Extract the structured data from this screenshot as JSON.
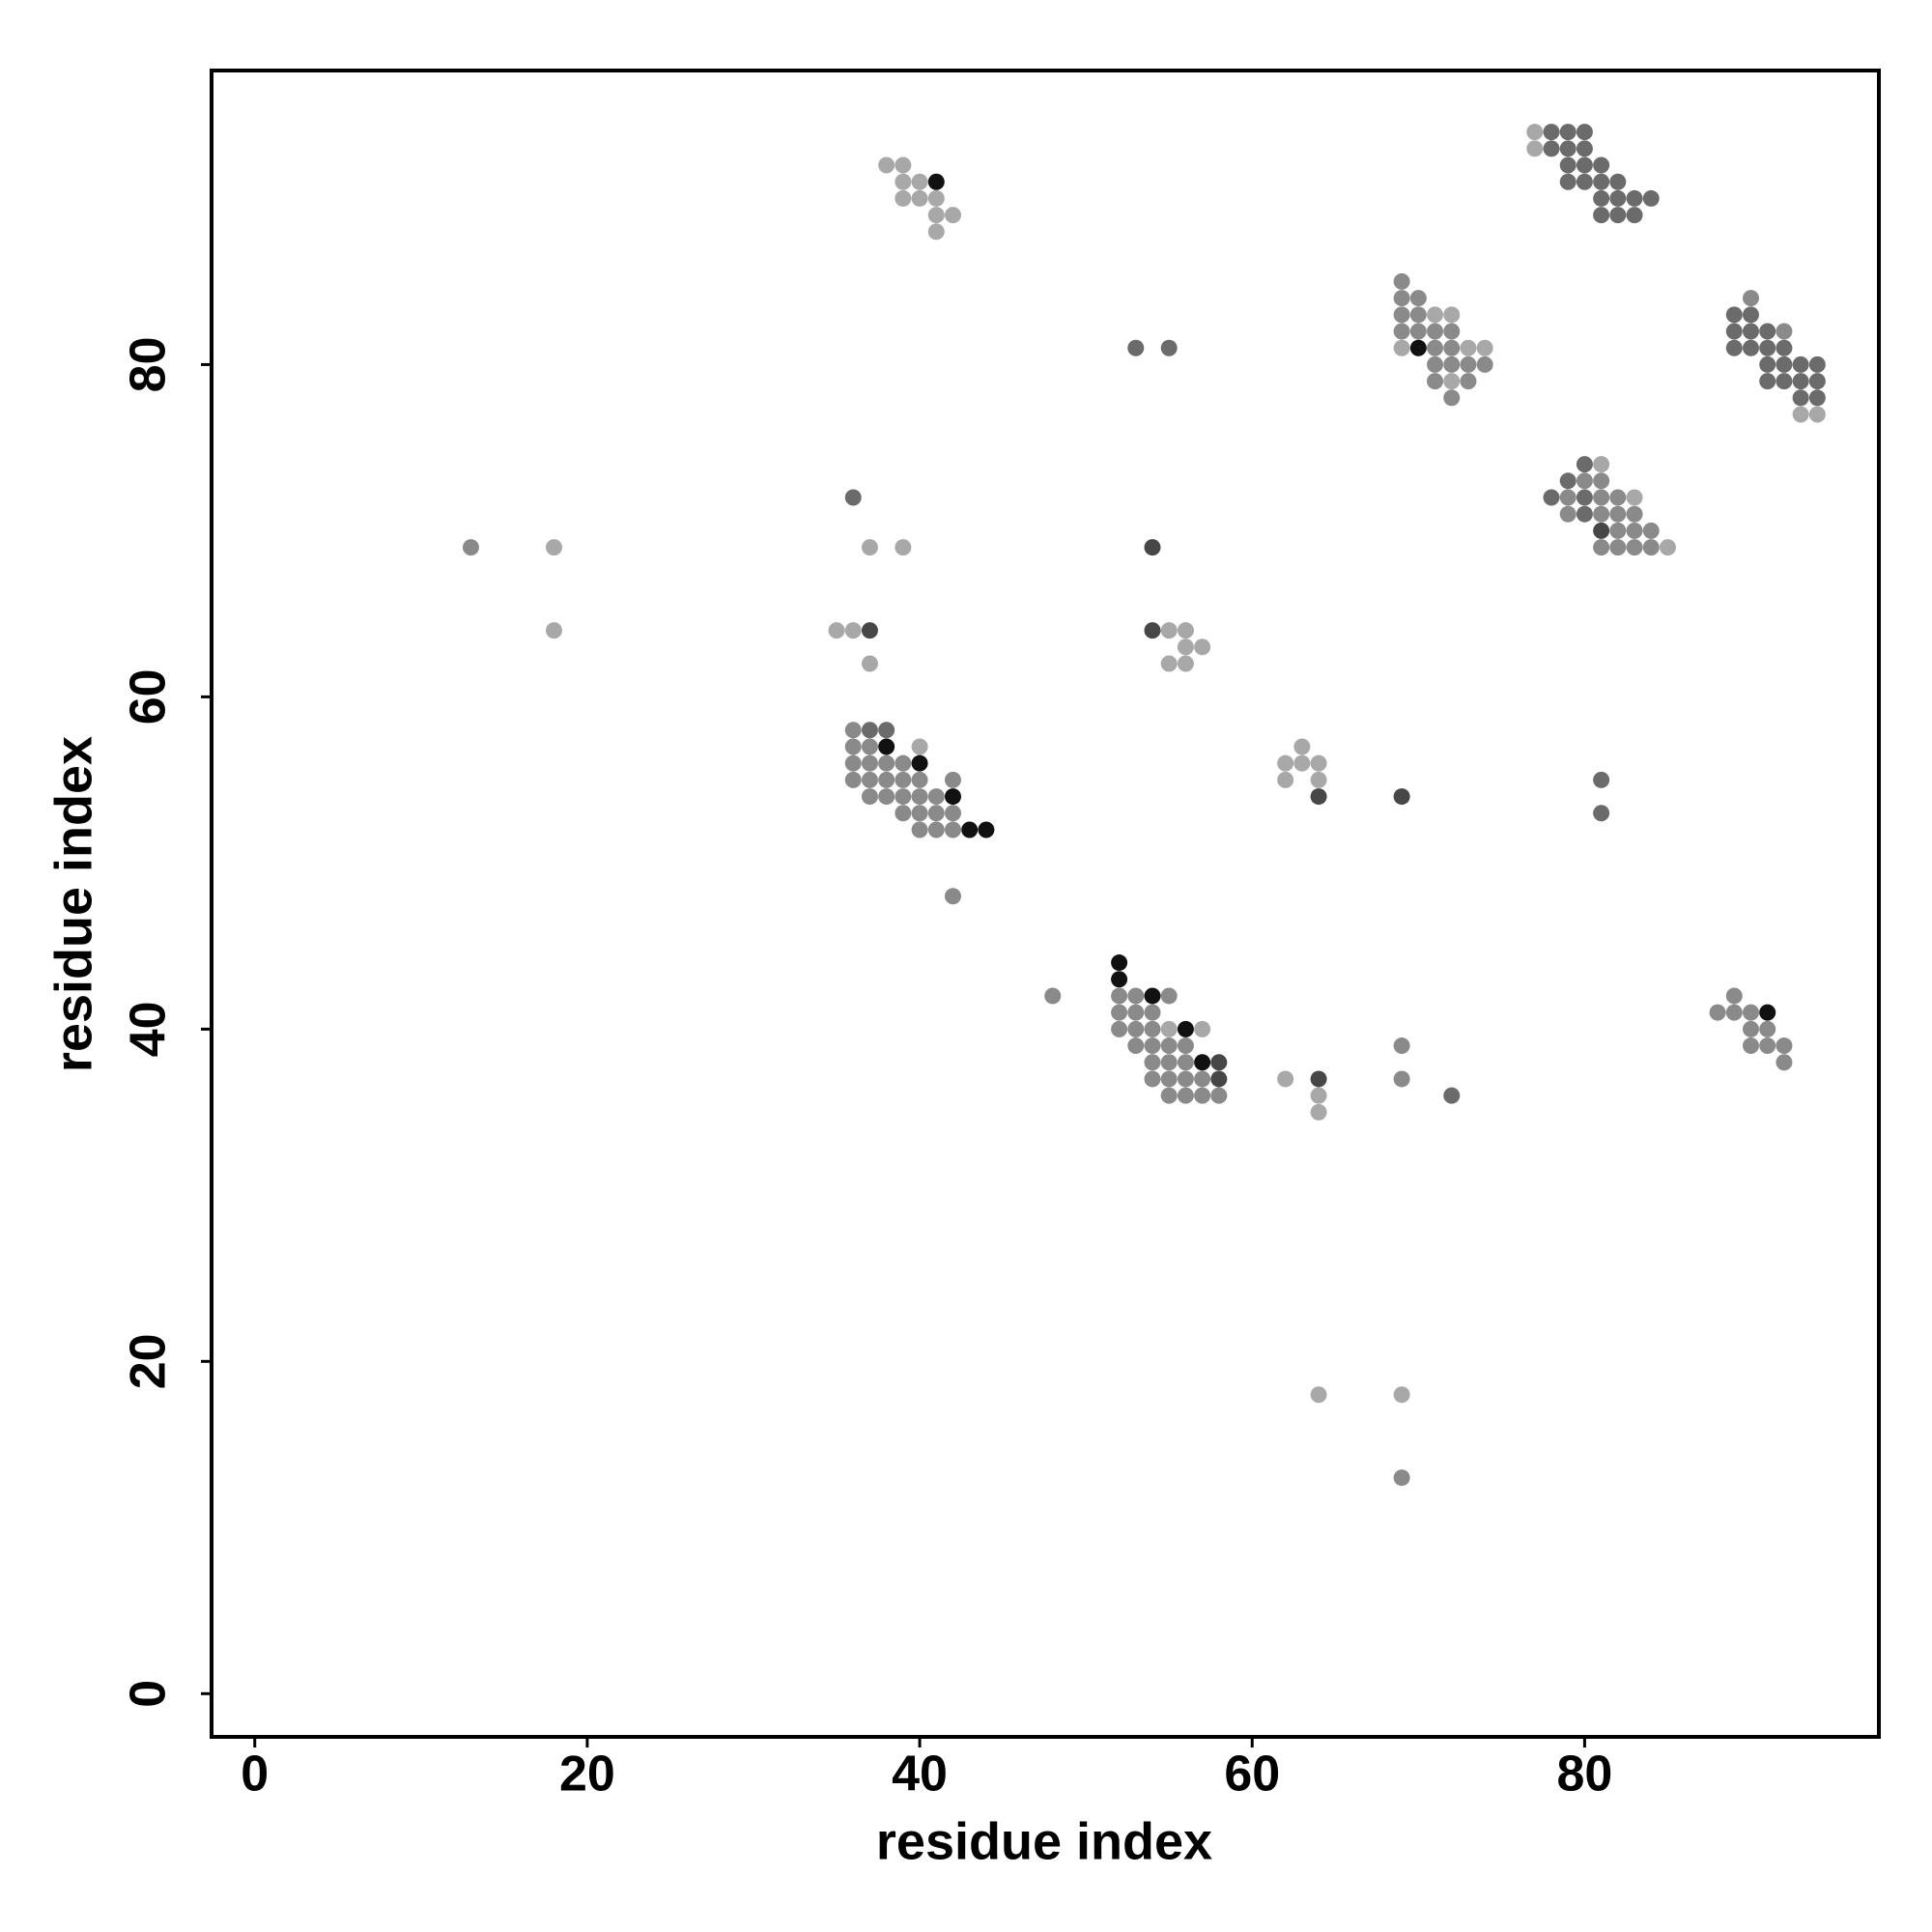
{
  "chart_data": {
    "type": "scatter",
    "xlabel": "residue index",
    "ylabel": "residue index",
    "xlim": [
      -2.6,
      97.7
    ],
    "ylim": [
      -2.6,
      97.7
    ],
    "xticks": [
      0,
      20,
      40,
      60,
      80
    ],
    "yticks": [
      0,
      20,
      40,
      60,
      80
    ],
    "series": [
      {
        "color": "#a8a8a8",
        "x": [
          38,
          39,
          39,
          40,
          39,
          40,
          41,
          41,
          42,
          41,
          77,
          77,
          71,
          72,
          69,
          73,
          74,
          72,
          81,
          83,
          85,
          93,
          94,
          18,
          37,
          39,
          18,
          35,
          36,
          55,
          56,
          56,
          57,
          37,
          55,
          56,
          40,
          63,
          62,
          63,
          64,
          62,
          64,
          55,
          57,
          62,
          64,
          64,
          64,
          69
        ],
        "values": [
          92,
          92,
          91,
          91,
          90,
          90,
          90,
          89,
          89,
          88,
          94,
          93,
          83,
          83,
          81,
          81,
          81,
          79,
          74,
          72,
          69,
          77,
          77,
          69,
          69,
          69,
          64,
          64,
          64,
          64,
          64,
          63,
          63,
          62,
          62,
          62,
          57,
          57,
          56,
          56,
          56,
          55,
          55,
          40,
          40,
          37,
          36,
          35,
          18,
          18
        ]
      },
      {
        "color": "#8a8a8a",
        "x": [
          69,
          69,
          70,
          69,
          70,
          69,
          70,
          71,
          72,
          71,
          72,
          71,
          72,
          73,
          74,
          71,
          73,
          72,
          80,
          81,
          79,
          81,
          82,
          79,
          81,
          82,
          83,
          82,
          83,
          84,
          81,
          82,
          83,
          84,
          90,
          92,
          36,
          36,
          37,
          36,
          37,
          38,
          39,
          36,
          37,
          38,
          39,
          40,
          37,
          38,
          39,
          40,
          41,
          39,
          40,
          41,
          42,
          40,
          41,
          42,
          42,
          52,
          53,
          55,
          52,
          53,
          54,
          52,
          53,
          54,
          53,
          54,
          55,
          56,
          54,
          55,
          56,
          54,
          55,
          56,
          57,
          55,
          56,
          57,
          58,
          69,
          69,
          69,
          13,
          89,
          88,
          89,
          90,
          90,
          91,
          90,
          91,
          92,
          92,
          42,
          48
        ],
        "values": [
          85,
          84,
          84,
          83,
          83,
          82,
          82,
          82,
          82,
          81,
          81,
          80,
          80,
          80,
          80,
          79,
          79,
          78,
          73,
          73,
          72,
          72,
          72,
          71,
          71,
          71,
          71,
          70,
          70,
          70,
          69,
          69,
          69,
          69,
          84,
          82,
          58,
          57,
          57,
          56,
          56,
          56,
          56,
          55,
          55,
          55,
          55,
          55,
          54,
          54,
          54,
          54,
          54,
          53,
          53,
          53,
          53,
          52,
          52,
          52,
          55,
          42,
          42,
          42,
          41,
          41,
          41,
          40,
          40,
          40,
          39,
          39,
          39,
          39,
          38,
          38,
          38,
          37,
          37,
          37,
          37,
          36,
          36,
          36,
          36,
          37,
          39,
          13,
          69,
          42,
          41,
          41,
          41,
          40,
          40,
          39,
          39,
          39,
          38,
          48,
          42
        ]
      },
      {
        "color": "#6b6b6b",
        "x": [
          78,
          79,
          80,
          78,
          79,
          80,
          79,
          80,
          81,
          79,
          80,
          81,
          82,
          81,
          82,
          83,
          84,
          81,
          82,
          83,
          53,
          55,
          36,
          78,
          81,
          81,
          72,
          37,
          38,
          89,
          90,
          89,
          90,
          91,
          89,
          90,
          91,
          92,
          91,
          92,
          93,
          94,
          91,
          92,
          93,
          94,
          93,
          94,
          80,
          79,
          80,
          80
        ],
        "values": [
          94,
          94,
          94,
          93,
          93,
          93,
          92,
          92,
          92,
          91,
          91,
          91,
          91,
          90,
          90,
          90,
          90,
          89,
          89,
          89,
          81,
          81,
          72,
          72,
          55,
          53,
          36,
          58,
          58,
          83,
          83,
          82,
          82,
          82,
          81,
          81,
          81,
          81,
          80,
          80,
          80,
          80,
          79,
          79,
          79,
          79,
          78,
          78,
          74,
          73,
          72,
          71
        ]
      },
      {
        "color": "#474747",
        "x": [
          54,
          37,
          54,
          64,
          69,
          64,
          58,
          58,
          81
        ],
        "values": [
          69,
          64,
          64,
          54,
          54,
          37,
          38,
          37,
          70
        ]
      },
      {
        "color": "#111111",
        "x": [
          41,
          70,
          38,
          40,
          42,
          43,
          44,
          52,
          52,
          54,
          56,
          57,
          91
        ],
        "values": [
          91,
          81,
          57,
          56,
          54,
          52,
          52,
          44,
          43,
          42,
          40,
          38,
          41
        ]
      }
    ]
  }
}
